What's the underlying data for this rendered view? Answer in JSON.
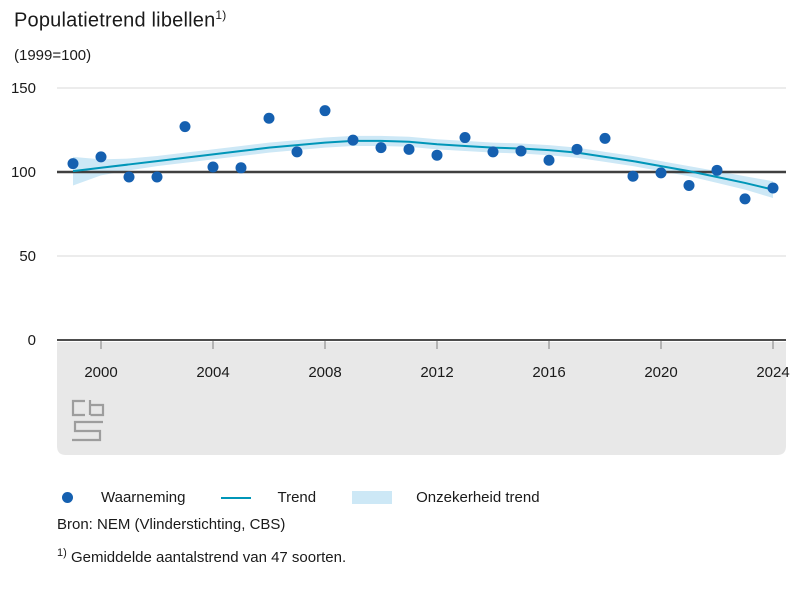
{
  "header": {
    "title": "Populatietrend libellen",
    "title_sup": "1)",
    "subtitle": "(1999=100)"
  },
  "legend": {
    "items": [
      {
        "label": "Waarneming",
        "marker": "dot"
      },
      {
        "label": "Trend",
        "marker": "line"
      },
      {
        "label": "Onzekerheid trend",
        "marker": "band"
      }
    ]
  },
  "footer": {
    "source": "Bron: NEM (Vlinderstichting, CBS)",
    "note_sup": "1)",
    "note": "Gemiddelde aantalstrend van 47 soorten."
  },
  "colors": {
    "dot": "#1560b0",
    "trend": "#0096b8",
    "band": "#cde8f6",
    "grid": "#d9d9d9",
    "ref_line": "#404040",
    "axis": "#4d4d4d",
    "tick": "#7f7f7f",
    "band_bg": "#e8e8e8",
    "text": "#1a1a1a",
    "logo": "#9d9d9d"
  },
  "chart_data": {
    "type": "scatter",
    "title": "Populatietrend libellen (1999=100)",
    "xlabel": "",
    "ylabel": "",
    "xlim": [
      1999,
      2024
    ],
    "ylim": [
      0,
      150
    ],
    "ref_line": 100,
    "x_ticks": [
      2000,
      2004,
      2008,
      2012,
      2016,
      2020,
      2024
    ],
    "y_ticks": [
      0,
      50,
      100,
      150
    ],
    "legend_position": "bottom",
    "x": [
      1999,
      2000,
      2001,
      2002,
      2003,
      2004,
      2005,
      2006,
      2007,
      2008,
      2009,
      2010,
      2011,
      2012,
      2013,
      2014,
      2015,
      2016,
      2017,
      2018,
      2019,
      2020,
      2021,
      2022,
      2023,
      2024
    ],
    "series": [
      {
        "name": "Waarneming",
        "type": "scatter",
        "values": [
          105,
          109,
          97,
          97,
          127,
          103,
          102.5,
          132,
          112,
          136.5,
          119,
          114.5,
          113.5,
          110,
          120.5,
          112,
          112.5,
          107,
          113.5,
          120,
          97.5,
          99.5,
          92,
          101,
          84,
          90.5
        ]
      },
      {
        "name": "Trend",
        "type": "line",
        "values": [
          100.5,
          102.5,
          104.5,
          106.5,
          108.5,
          110.5,
          112.5,
          114.5,
          116,
          117.5,
          118.5,
          118.5,
          118,
          116.5,
          115.5,
          114.5,
          114,
          113,
          111.5,
          109,
          106.5,
          103.5,
          100.5,
          97,
          93.5,
          89.5
        ]
      },
      {
        "name": "Onzekerheid trend",
        "type": "band",
        "upper": [
          109,
          107.5,
          108,
          109.5,
          111.5,
          113.5,
          115.5,
          117.5,
          119,
          120.5,
          121.5,
          121.5,
          121,
          119.5,
          118.5,
          117.5,
          117,
          116,
          114.5,
          112,
          109.5,
          106.5,
          103.5,
          100.5,
          97.5,
          94.5
        ],
        "lower": [
          92,
          98,
          101,
          103.5,
          105.5,
          107.5,
          109.5,
          111.5,
          113,
          114.5,
          115.5,
          115.5,
          115,
          113.5,
          112.5,
          111.5,
          111,
          110,
          108.5,
          106,
          103.5,
          100.5,
          97.5,
          93.5,
          89.5,
          84.5
        ]
      }
    ]
  }
}
